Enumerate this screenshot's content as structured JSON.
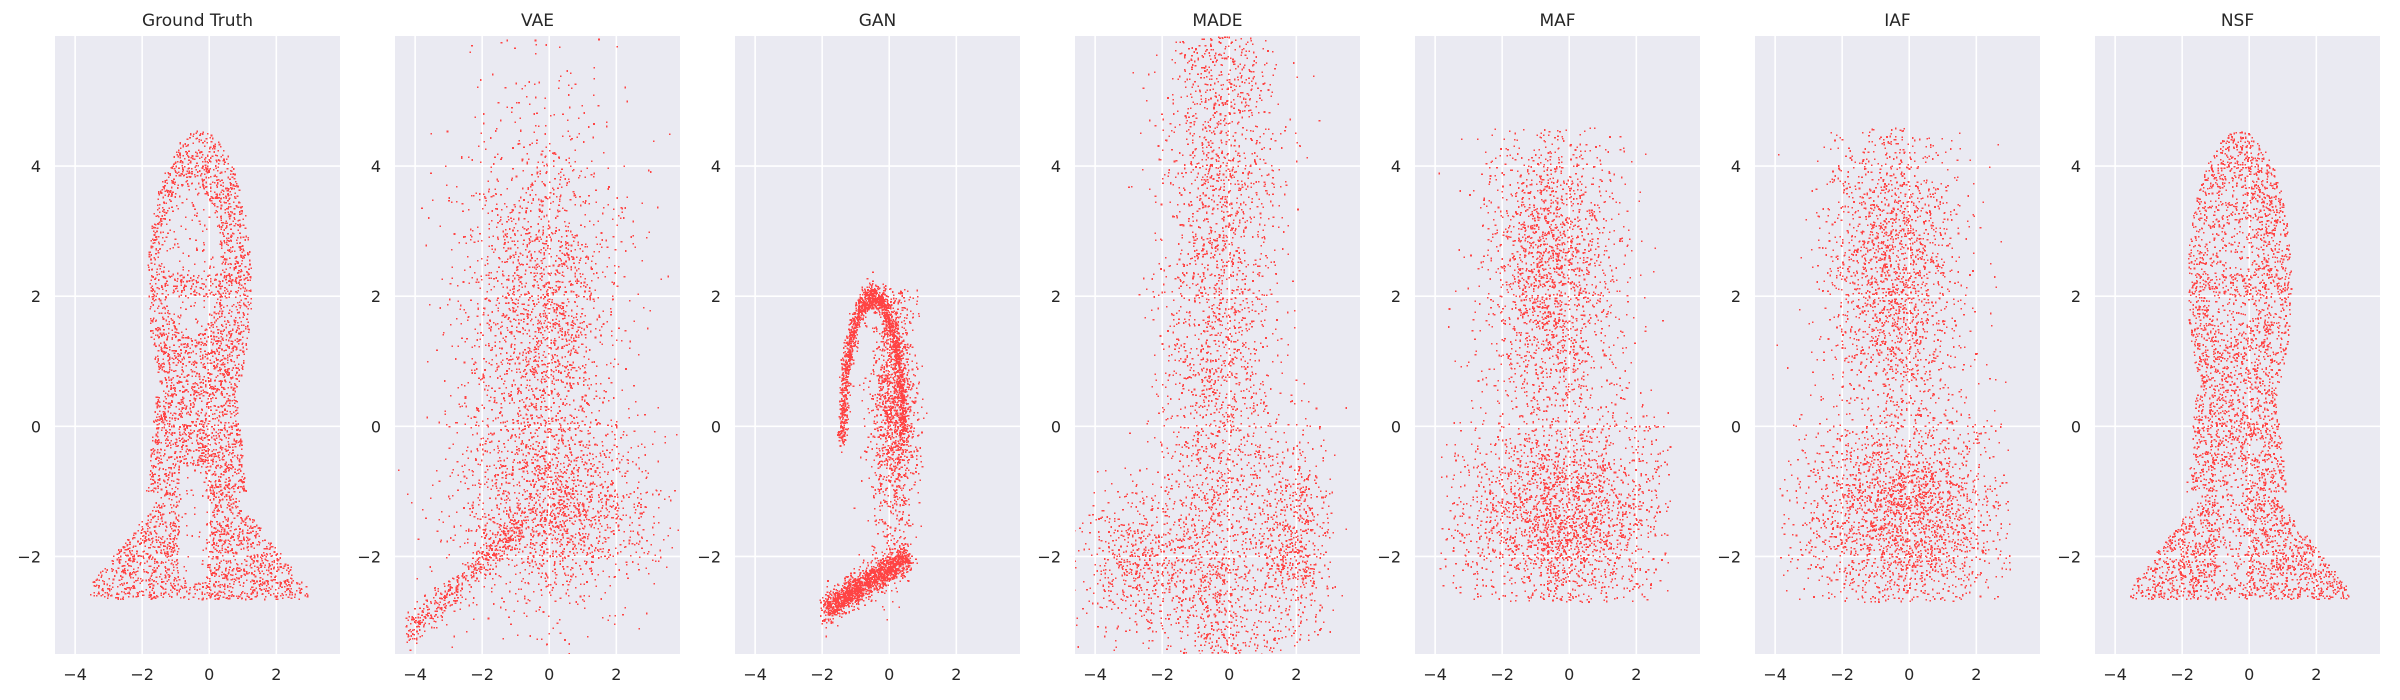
{
  "figure": {
    "description": "Seven scatter panels comparing density samples of a face/portrait point cloud"
  },
  "chart_data": [
    {
      "type": "scatter",
      "title": "Ground Truth",
      "xlim": [
        -4.6,
        3.9
      ],
      "ylim": [
        -3.5,
        6.0
      ],
      "xticks": [
        -4,
        -2,
        0,
        2
      ],
      "yticks": [
        -2,
        0,
        2,
        4
      ],
      "grid": true,
      "point_color": "#ff4444",
      "shape": "portrait-sharp"
    },
    {
      "type": "scatter",
      "title": "VAE",
      "xlim": [
        -4.6,
        3.9
      ],
      "ylim": [
        -3.5,
        6.0
      ],
      "xticks": [
        -4,
        -2,
        0,
        2
      ],
      "yticks": [
        -2,
        0,
        2,
        4
      ],
      "grid": true,
      "point_color": "#ff4444",
      "shape": "diffuse-cone"
    },
    {
      "type": "scatter",
      "title": "GAN",
      "xlim": [
        -4.6,
        3.9
      ],
      "ylim": [
        -3.5,
        6.0
      ],
      "xticks": [
        -4,
        -2,
        0,
        2
      ],
      "yticks": [
        -2,
        0,
        2,
        4
      ],
      "grid": true,
      "point_color": "#ff4444",
      "shape": "mode-collapsed-arc"
    },
    {
      "type": "scatter",
      "title": "MADE",
      "xlim": [
        -4.6,
        3.9
      ],
      "ylim": [
        -3.5,
        6.0
      ],
      "xticks": [
        -4,
        -2,
        0,
        2
      ],
      "yticks": [
        -2,
        0,
        2,
        4
      ],
      "grid": true,
      "point_color": "#ff4444",
      "shape": "vertical-column"
    },
    {
      "type": "scatter",
      "title": "MAF",
      "xlim": [
        -4.6,
        3.9
      ],
      "ylim": [
        -3.5,
        6.0
      ],
      "xticks": [
        -4,
        -2,
        0,
        2
      ],
      "yticks": [
        -2,
        0,
        2,
        4
      ],
      "grid": true,
      "point_color": "#ff4444",
      "shape": "head-shoulders-blurred"
    },
    {
      "type": "scatter",
      "title": "IAF",
      "xlim": [
        -4.6,
        3.9
      ],
      "ylim": [
        -3.5,
        6.0
      ],
      "xticks": [
        -4,
        -2,
        0,
        2
      ],
      "yticks": [
        -2,
        0,
        2,
        4
      ],
      "grid": true,
      "point_color": "#ff4444",
      "shape": "head-shoulders-blurred"
    },
    {
      "type": "scatter",
      "title": "NSF",
      "xlim": [
        -4.6,
        3.9
      ],
      "ylim": [
        -3.5,
        6.0
      ],
      "xticks": [
        -4,
        -2,
        0,
        2
      ],
      "yticks": [
        -2,
        0,
        2,
        4
      ],
      "grid": true,
      "point_color": "#ff4444",
      "shape": "portrait-close"
    }
  ]
}
